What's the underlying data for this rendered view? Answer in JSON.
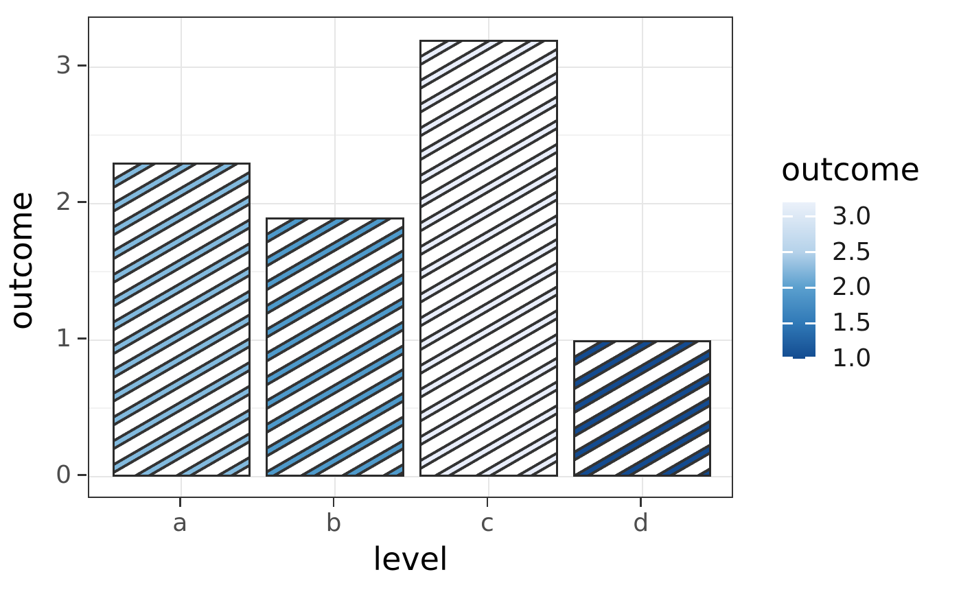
{
  "figure": {
    "background": "#ffffff",
    "panel_border_color": "#333333",
    "grid_major_color": "#e6e6e6",
    "grid_minor_color": "#f2f2f2",
    "axis_tick_color": "#333333",
    "axis_text_color": "#4d4d4d",
    "axis_title_color": "#000000"
  },
  "chart_data": {
    "type": "bar",
    "title": "",
    "xlabel": "level",
    "ylabel": "outcome",
    "categories": [
      "a",
      "b",
      "c",
      "d"
    ],
    "values": [
      2.3,
      1.9,
      3.2,
      1.0
    ],
    "ylim": [
      -0.168,
      3.36
    ],
    "y_major_ticks": [
      0,
      1,
      2,
      3
    ],
    "y_minor_gridlines": [
      0.5,
      1.5,
      2.5
    ],
    "grid": "major and minor horizontal, major vertical at category centers",
    "bar_fill": "#ffffff",
    "bar_border_color": "#2b2b2b",
    "pattern": {
      "type": "stripe",
      "angle_deg": 30,
      "outline_color": "#333333",
      "stripe_colors": [
        "#82bade",
        "#4e9acb",
        "#e9eefb",
        "#134b90"
      ]
    },
    "legend": {
      "title": "outcome",
      "position": "right",
      "style": "colorbar",
      "range": [
        1.0,
        3.2
      ],
      "tick_labels": [
        "3.0",
        "2.5",
        "2.0",
        "1.5",
        "1.0"
      ],
      "tick_values": [
        3.0,
        2.5,
        2.0,
        1.5,
        1.0
      ],
      "gradient_stops": [
        {
          "value": 3.2,
          "color": "#ebf1fa"
        },
        {
          "value": 3.0,
          "color": "#dce8f5"
        },
        {
          "value": 2.5,
          "color": "#b5d2ea"
        },
        {
          "value": 2.0,
          "color": "#5a9fce"
        },
        {
          "value": 1.5,
          "color": "#3079b7"
        },
        {
          "value": 1.0,
          "color": "#134b90"
        }
      ]
    }
  }
}
